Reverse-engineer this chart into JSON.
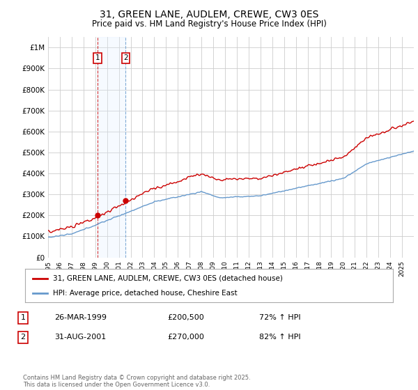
{
  "title": "31, GREEN LANE, AUDLEM, CREWE, CW3 0ES",
  "subtitle": "Price paid vs. HM Land Registry's House Price Index (HPI)",
  "legend_label_red": "31, GREEN LANE, AUDLEM, CREWE, CW3 0ES (detached house)",
  "legend_label_blue": "HPI: Average price, detached house, Cheshire East",
  "transaction1_date": "26-MAR-1999",
  "transaction1_price": "£200,500",
  "transaction1_hpi": "72% ↑ HPI",
  "transaction2_date": "31-AUG-2001",
  "transaction2_price": "£270,000",
  "transaction2_hpi": "82% ↑ HPI",
  "footer": "Contains HM Land Registry data © Crown copyright and database right 2025.\nThis data is licensed under the Open Government Licence v3.0.",
  "red_color": "#cc0000",
  "blue_color": "#6699cc",
  "shade_color": "#ddeeff",
  "background_color": "#ffffff",
  "grid_color": "#cccccc",
  "ylim_min": 0,
  "ylim_max": 1050000,
  "x_start_year": 1995,
  "x_end_year": 2026,
  "t1_year": 1999.21,
  "t1_price": 200500,
  "t2_year": 2001.58,
  "t2_price": 270000
}
